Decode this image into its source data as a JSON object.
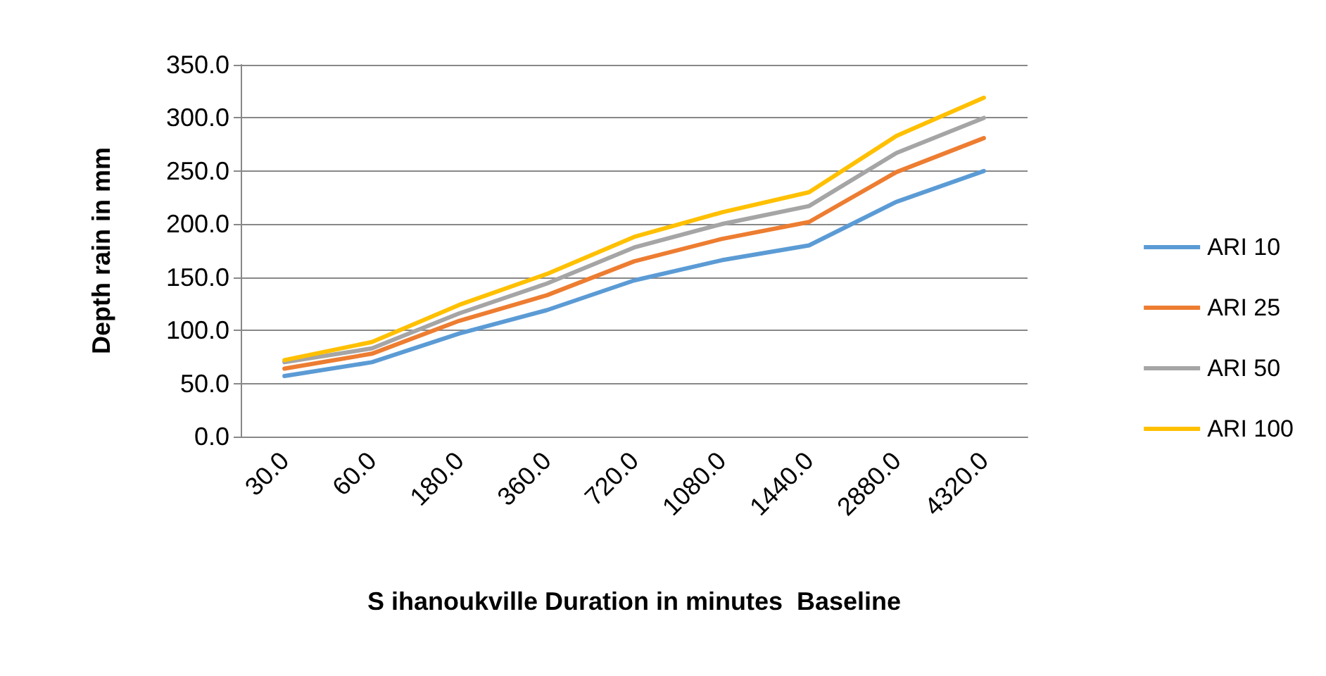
{
  "chart_data": {
    "type": "line",
    "xlabel": "S ihanoukville Duration in minutes  Baseline",
    "ylabel": "Depth rain in mm",
    "categories": [
      "30.0",
      "60.0",
      "180.0",
      "360.0",
      "720.0",
      "1080.0",
      "1440.0",
      "2880.0",
      "4320.0"
    ],
    "series": [
      {
        "name": "ARI 10",
        "color": "#5b9bd5",
        "values": [
          57,
          70,
          97,
          119,
          147,
          166,
          180,
          221,
          250
        ]
      },
      {
        "name": "ARI 25",
        "color": "#ed7d31",
        "values": [
          64,
          78,
          109,
          133,
          165,
          186,
          202,
          249,
          281
        ]
      },
      {
        "name": "ARI 50",
        "color": "#a5a5a5",
        "values": [
          70,
          83,
          116,
          144,
          178,
          200,
          217,
          267,
          300
        ]
      },
      {
        "name": "ARI 100",
        "color": "#ffc000",
        "values": [
          72,
          89,
          124,
          153,
          188,
          211,
          230,
          283,
          319
        ]
      }
    ],
    "ylim": [
      0,
      350
    ],
    "yticks": [
      {
        "value": 0,
        "label": "0.0"
      },
      {
        "value": 50,
        "label": "50.0"
      },
      {
        "value": 100,
        "label": "100.0"
      },
      {
        "value": 150,
        "label": "150.0"
      },
      {
        "value": 200,
        "label": "200.0"
      },
      {
        "value": 250,
        "label": "250.0"
      },
      {
        "value": 300,
        "label": "300.0"
      },
      {
        "value": 350,
        "label": "350.0"
      }
    ],
    "grid": "y",
    "legend": "right",
    "marker": "none",
    "line_style": "solid"
  }
}
